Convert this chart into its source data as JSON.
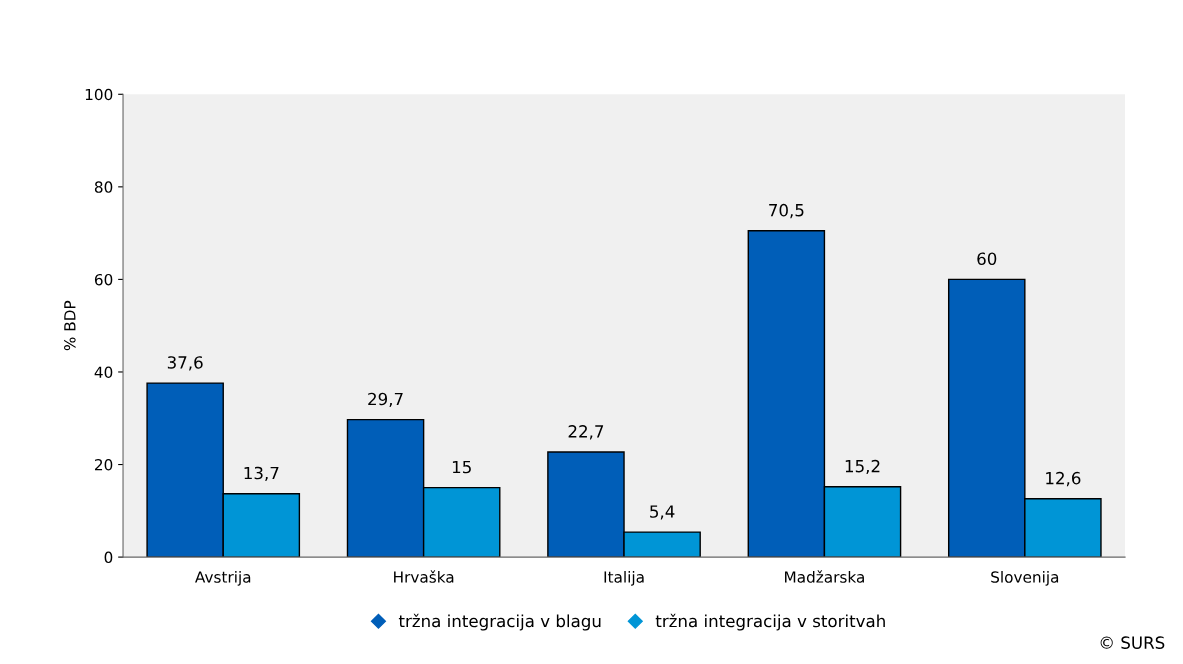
{
  "chart_data": {
    "type": "bar",
    "ylabel": "% BDP",
    "categories": [
      "Avstrija",
      "Hrvaška",
      "Italija",
      "Madžarska",
      "Slovenija"
    ],
    "series": [
      {
        "name": "tržna integracija v blagu",
        "color": "#005eb8",
        "values": [
          37.6,
          29.7,
          22.7,
          70.5,
          60
        ],
        "value_labels": [
          "37,6",
          "29,7",
          "22,7",
          "70,5",
          "60"
        ]
      },
      {
        "name": "tržna integracija v storitvah",
        "color": "#0095d6",
        "values": [
          13.7,
          15,
          5.4,
          15.2,
          12.6
        ],
        "value_labels": [
          "13,7",
          "15",
          "5,4",
          "15,2",
          "12,6"
        ]
      }
    ],
    "ylim": [
      0,
      100
    ],
    "yticks": [
      0,
      20,
      40,
      60,
      80,
      100
    ],
    "grid": false,
    "legend": "bottom",
    "annotations": [
      "© SURS"
    ]
  }
}
